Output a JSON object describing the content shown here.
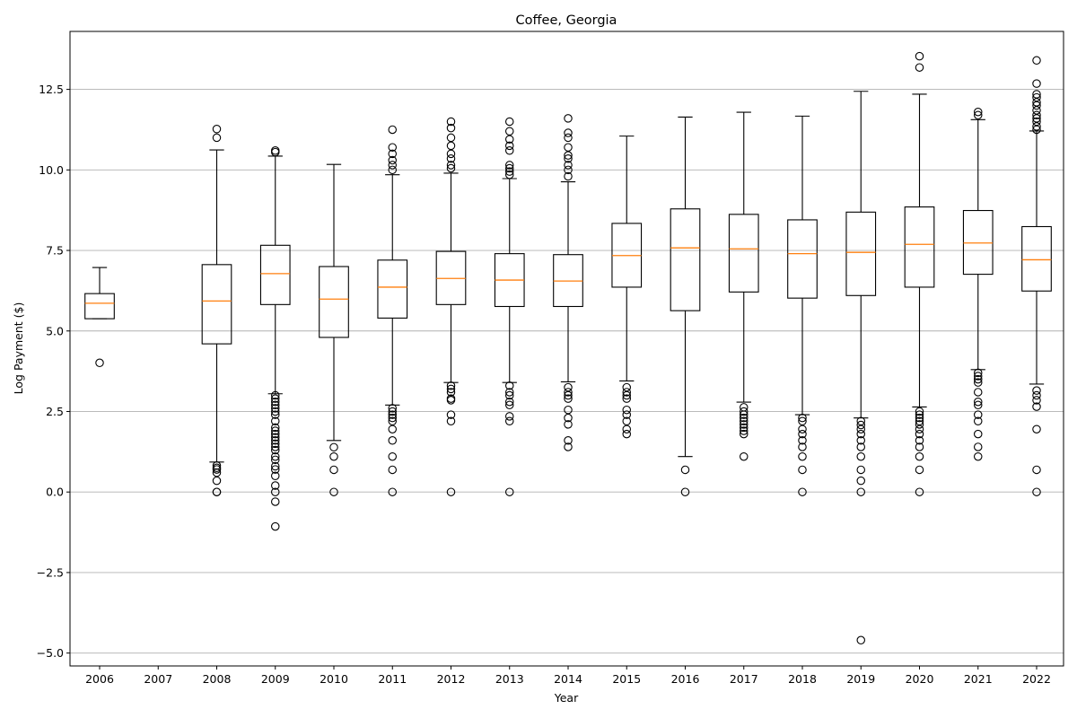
{
  "chart_data": {
    "type": "box",
    "title": "Coffee, Georgia",
    "xlabel": "Year",
    "ylabel": "Log Payment ($)",
    "ylim": [
      -5.4,
      14.3
    ],
    "yticks": [
      -5.0,
      -2.5,
      0.0,
      2.5,
      5.0,
      7.5,
      10.0,
      12.5
    ],
    "ytick_labels": [
      "−5.0",
      "−2.5",
      "0.0",
      "2.5",
      "5.0",
      "7.5",
      "10.0",
      "12.5"
    ],
    "grid": "horizontal",
    "colors": {
      "box": "#000000",
      "median": "#ff7f0e",
      "grid": "#b0b0b0"
    },
    "categories": [
      "2006",
      "2007",
      "2008",
      "2009",
      "2010",
      "2011",
      "2012",
      "2013",
      "2014",
      "2015",
      "2016",
      "2017",
      "2018",
      "2019",
      "2020",
      "2021",
      "2022"
    ],
    "boxes": [
      {
        "year": "2006",
        "whislo": 5.38,
        "q1": 5.38,
        "med": 5.86,
        "q3": 6.16,
        "whishi": 6.97,
        "fliers": [
          4.01
        ]
      },
      {
        "year": "2007",
        "empty": true
      },
      {
        "year": "2008",
        "whislo": 0.93,
        "q1": 4.6,
        "med": 5.93,
        "q3": 7.06,
        "whishi": 10.62,
        "fliers": [
          11.27,
          11.0,
          0.82,
          0.75,
          0.7,
          0.6,
          0.35,
          0.0,
          0.0
        ]
      },
      {
        "year": "2009",
        "whislo": 3.05,
        "q1": 5.82,
        "med": 6.78,
        "q3": 7.66,
        "whishi": 10.43,
        "fliers": [
          10.6,
          10.55,
          3.0,
          2.9,
          2.8,
          2.7,
          2.6,
          2.5,
          2.4,
          2.2,
          2.0,
          1.9,
          1.8,
          1.7,
          1.6,
          1.5,
          1.4,
          1.3,
          1.1,
          1.0,
          0.8,
          0.7,
          0.5,
          0.2,
          0.0,
          -0.3,
          -1.07
        ]
      },
      {
        "year": "2010",
        "whislo": 1.6,
        "q1": 4.8,
        "med": 5.99,
        "q3": 7.0,
        "whishi": 10.17,
        "fliers": [
          1.39,
          1.1,
          0.69,
          0.0
        ]
      },
      {
        "year": "2011",
        "whislo": 2.7,
        "q1": 5.4,
        "med": 6.36,
        "q3": 7.2,
        "whishi": 9.85,
        "fliers": [
          11.25,
          10.7,
          10.5,
          10.3,
          10.15,
          10.0,
          2.6,
          2.5,
          2.4,
          2.3,
          2.2,
          1.95,
          1.6,
          1.1,
          0.69,
          0.0
        ]
      },
      {
        "year": "2012",
        "whislo": 3.4,
        "q1": 5.82,
        "med": 6.63,
        "q3": 7.47,
        "whishi": 9.9,
        "fliers": [
          11.5,
          11.3,
          11.0,
          10.75,
          10.5,
          10.35,
          10.15,
          10.05,
          3.3,
          3.2,
          3.1,
          2.9,
          2.85,
          2.4,
          2.2,
          0.0
        ]
      },
      {
        "year": "2013",
        "whislo": 3.4,
        "q1": 5.76,
        "med": 6.58,
        "q3": 7.4,
        "whishi": 9.73,
        "fliers": [
          11.5,
          11.2,
          10.95,
          10.75,
          10.6,
          10.15,
          10.05,
          9.95,
          9.85,
          3.3,
          3.1,
          3.0,
          2.8,
          2.7,
          2.35,
          2.2,
          0.0
        ]
      },
      {
        "year": "2014",
        "whislo": 3.42,
        "q1": 5.76,
        "med": 6.55,
        "q3": 7.37,
        "whishi": 9.63,
        "fliers": [
          11.6,
          11.15,
          11.0,
          10.7,
          10.45,
          10.35,
          10.15,
          10.0,
          9.8,
          3.25,
          3.1,
          3.0,
          2.9,
          2.55,
          2.3,
          2.1,
          1.6,
          1.4
        ]
      },
      {
        "year": "2015",
        "whislo": 3.45,
        "q1": 6.36,
        "med": 7.34,
        "q3": 8.34,
        "whishi": 11.05,
        "fliers": [
          3.25,
          3.1,
          3.0,
          2.9,
          2.55,
          2.4,
          2.2,
          1.95,
          1.8
        ]
      },
      {
        "year": "2016",
        "whislo": 1.1,
        "q1": 5.63,
        "med": 7.58,
        "q3": 8.79,
        "whishi": 11.64,
        "fliers": [
          0.69,
          0.0
        ]
      },
      {
        "year": "2017",
        "whislo": 2.79,
        "q1": 6.21,
        "med": 7.55,
        "q3": 8.62,
        "whishi": 11.79,
        "fliers": [
          2.63,
          2.5,
          2.4,
          2.3,
          2.2,
          2.1,
          2.0,
          1.9,
          1.8,
          1.1
        ]
      },
      {
        "year": "2018",
        "whislo": 2.4,
        "q1": 6.02,
        "med": 7.4,
        "q3": 8.45,
        "whishi": 11.67,
        "fliers": [
          2.3,
          2.2,
          1.95,
          1.8,
          1.6,
          1.4,
          1.1,
          0.69,
          0.0
        ]
      },
      {
        "year": "2019",
        "whislo": 2.3,
        "q1": 6.1,
        "med": 7.44,
        "q3": 8.69,
        "whishi": 12.44,
        "fliers": [
          2.2,
          2.08,
          1.95,
          1.8,
          1.6,
          1.4,
          1.1,
          0.69,
          0.35,
          0.0,
          -4.6
        ]
      },
      {
        "year": "2020",
        "whislo": 2.64,
        "q1": 6.36,
        "med": 7.69,
        "q3": 8.85,
        "whishi": 12.35,
        "fliers": [
          13.53,
          13.18,
          2.5,
          2.4,
          2.3,
          2.2,
          2.1,
          1.95,
          1.8,
          1.6,
          1.4,
          1.1,
          0.69,
          0.0
        ]
      },
      {
        "year": "2021",
        "whislo": 3.8,
        "q1": 6.76,
        "med": 7.73,
        "q3": 8.74,
        "whishi": 11.56,
        "fliers": [
          11.8,
          11.7,
          3.7,
          3.6,
          3.5,
          3.4,
          3.1,
          2.8,
          2.7,
          2.4,
          2.2,
          1.8,
          1.4,
          1.1
        ]
      },
      {
        "year": "2022",
        "whislo": 3.35,
        "q1": 6.24,
        "med": 7.21,
        "q3": 8.24,
        "whishi": 11.21,
        "fliers": [
          13.4,
          12.68,
          12.35,
          12.25,
          12.1,
          12.0,
          11.85,
          11.7,
          11.6,
          11.5,
          11.35,
          11.25,
          3.15,
          3.0,
          2.85,
          2.65,
          1.95,
          0.69,
          0.0
        ]
      }
    ]
  }
}
